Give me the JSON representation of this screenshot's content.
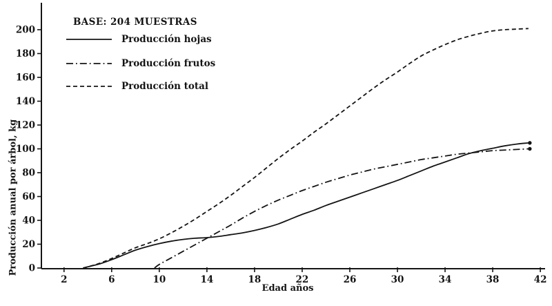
{
  "figure": {
    "note": "BASE: 204 MUESTRAS"
  },
  "chart_data": {
    "type": "line",
    "title": "BASE: 204 MUESTRAS",
    "xlabel": "Edad años",
    "ylabel": "Producción anual por árbol, kg",
    "xlim": [
      0.1,
      42.4
    ],
    "ylim": [
      0,
      220.3
    ],
    "xticks": [
      2,
      6,
      10,
      14,
      18,
      22,
      26,
      30,
      34,
      38,
      42
    ],
    "yticks": [
      0,
      20,
      40,
      60,
      80,
      100,
      120,
      140,
      160,
      180,
      200
    ],
    "grid": false,
    "legend_position": "top-left",
    "colors": {
      "line": "#141414",
      "background": "#ffffff"
    },
    "series": [
      {
        "name": "Producción hojas",
        "line_style": "solid",
        "end_marker": true,
        "points": [
          [
            3.6,
            0
          ],
          [
            4,
            1
          ],
          [
            5,
            3.5
          ],
          [
            6,
            7
          ],
          [
            7,
            11
          ],
          [
            8,
            15
          ],
          [
            9,
            18
          ],
          [
            10,
            20.5
          ],
          [
            11,
            22.5
          ],
          [
            12,
            24
          ],
          [
            13,
            25
          ],
          [
            14,
            25.5
          ],
          [
            15,
            26.5
          ],
          [
            16,
            28
          ],
          [
            17,
            29.5
          ],
          [
            18,
            31.5
          ],
          [
            19,
            34
          ],
          [
            20,
            37
          ],
          [
            21,
            41
          ],
          [
            22,
            45
          ],
          [
            23,
            48.5
          ],
          [
            24,
            52.5
          ],
          [
            25,
            56
          ],
          [
            26,
            59.5
          ],
          [
            27,
            63
          ],
          [
            28,
            66.5
          ],
          [
            29,
            70
          ],
          [
            30,
            73.5
          ],
          [
            31,
            77.5
          ],
          [
            32,
            81.5
          ],
          [
            33,
            85.5
          ],
          [
            34,
            89
          ],
          [
            35,
            92.5
          ],
          [
            36,
            96
          ],
          [
            37,
            98.5
          ],
          [
            38,
            100.5
          ],
          [
            39,
            102.5
          ],
          [
            40,
            104
          ],
          [
            41,
            105
          ]
        ]
      },
      {
        "name": "Producción frutos",
        "line_style": "dash-dot",
        "end_marker": true,
        "points": [
          [
            9.6,
            0
          ],
          [
            10,
            3
          ],
          [
            11,
            8.5
          ],
          [
            12,
            14
          ],
          [
            13,
            19.5
          ],
          [
            14,
            25
          ],
          [
            15,
            30.5
          ],
          [
            16,
            36
          ],
          [
            17,
            42
          ],
          [
            18,
            47.5
          ],
          [
            19,
            52.5
          ],
          [
            20,
            57
          ],
          [
            21,
            61
          ],
          [
            22,
            65
          ],
          [
            23,
            68.5
          ],
          [
            24,
            72
          ],
          [
            25,
            75
          ],
          [
            26,
            78
          ],
          [
            27,
            80.5
          ],
          [
            28,
            83
          ],
          [
            29,
            85
          ],
          [
            30,
            87
          ],
          [
            31,
            89
          ],
          [
            32,
            91
          ],
          [
            33,
            92.5
          ],
          [
            34,
            94
          ],
          [
            35,
            95.5
          ],
          [
            36,
            96.5
          ],
          [
            37,
            97.5
          ],
          [
            38,
            98.5
          ],
          [
            39,
            99
          ],
          [
            40,
            99.5
          ],
          [
            41,
            100
          ]
        ]
      },
      {
        "name": "Producción total",
        "line_style": "dashed",
        "end_marker": false,
        "points": [
          [
            3.6,
            0
          ],
          [
            4,
            1
          ],
          [
            5,
            4
          ],
          [
            6,
            8
          ],
          [
            7,
            12.5
          ],
          [
            8,
            17
          ],
          [
            9,
            20.5
          ],
          [
            10,
            24.5
          ],
          [
            11,
            29.5
          ],
          [
            12,
            35
          ],
          [
            13,
            41
          ],
          [
            14,
            47.5
          ],
          [
            15,
            54
          ],
          [
            16,
            61
          ],
          [
            17,
            68.5
          ],
          [
            18,
            76
          ],
          [
            19,
            84
          ],
          [
            20,
            92
          ],
          [
            21,
            99.5
          ],
          [
            22,
            106.5
          ],
          [
            23,
            114
          ],
          [
            24,
            121
          ],
          [
            25,
            128.5
          ],
          [
            26,
            136
          ],
          [
            27,
            143.5
          ],
          [
            28,
            151
          ],
          [
            29,
            158
          ],
          [
            30,
            164.5
          ],
          [
            31,
            171.5
          ],
          [
            32,
            178
          ],
          [
            33,
            183
          ],
          [
            34,
            187.5
          ],
          [
            35,
            191.5
          ],
          [
            36,
            194.5
          ],
          [
            37,
            197
          ],
          [
            38,
            199
          ],
          [
            39,
            200
          ],
          [
            40,
            200.5
          ],
          [
            41,
            201
          ]
        ]
      }
    ]
  }
}
